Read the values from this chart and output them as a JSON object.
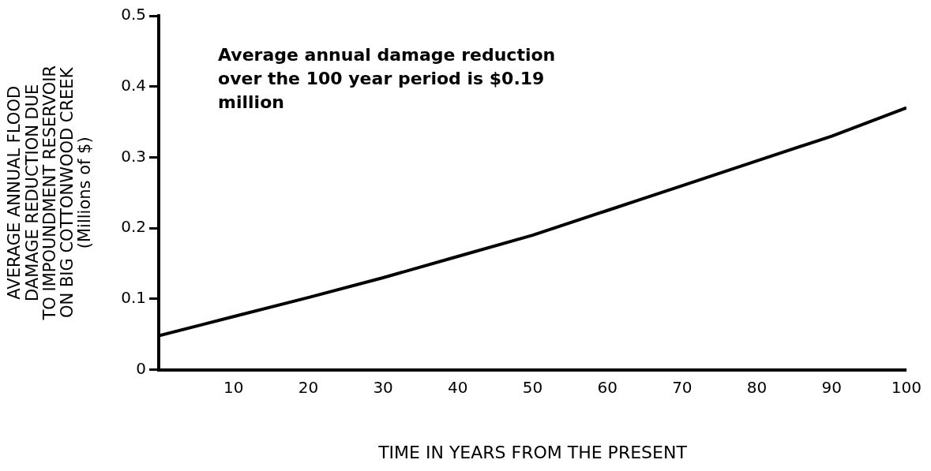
{
  "chart_data": {
    "type": "line",
    "xlabel": "TIME IN YEARS FROM THE PRESENT",
    "ylabel": [
      "AVERAGE ANNUAL FLOOD",
      "DAMAGE REDUCTION DUE",
      "TO IMPOUNDMENT RESERVOIR",
      "ON BIG COTTONWOOD CREEK",
      "(Millions of $)"
    ],
    "annotations": [
      "Average annual damage reduction over the 100 year period is $0.19 million"
    ],
    "x": [
      0,
      10,
      20,
      30,
      40,
      50,
      60,
      70,
      80,
      90,
      100
    ],
    "series": [
      {
        "color": "#000000",
        "values": [
          0.048,
          0.075,
          0.102,
          0.13,
          0.16,
          0.19,
          0.225,
          0.26,
          0.295,
          0.33,
          0.37
        ]
      }
    ],
    "xlim": [
      0,
      100
    ],
    "xticks": [
      10,
      20,
      30,
      40,
      50,
      60,
      70,
      80,
      90,
      100
    ],
    "ylim": [
      0,
      0.5
    ],
    "yticks": [
      0,
      0.1,
      0.2,
      0.3,
      0.4,
      0.5
    ],
    "grid": false,
    "legend": false,
    "marker": "none",
    "line_style": "solid"
  }
}
